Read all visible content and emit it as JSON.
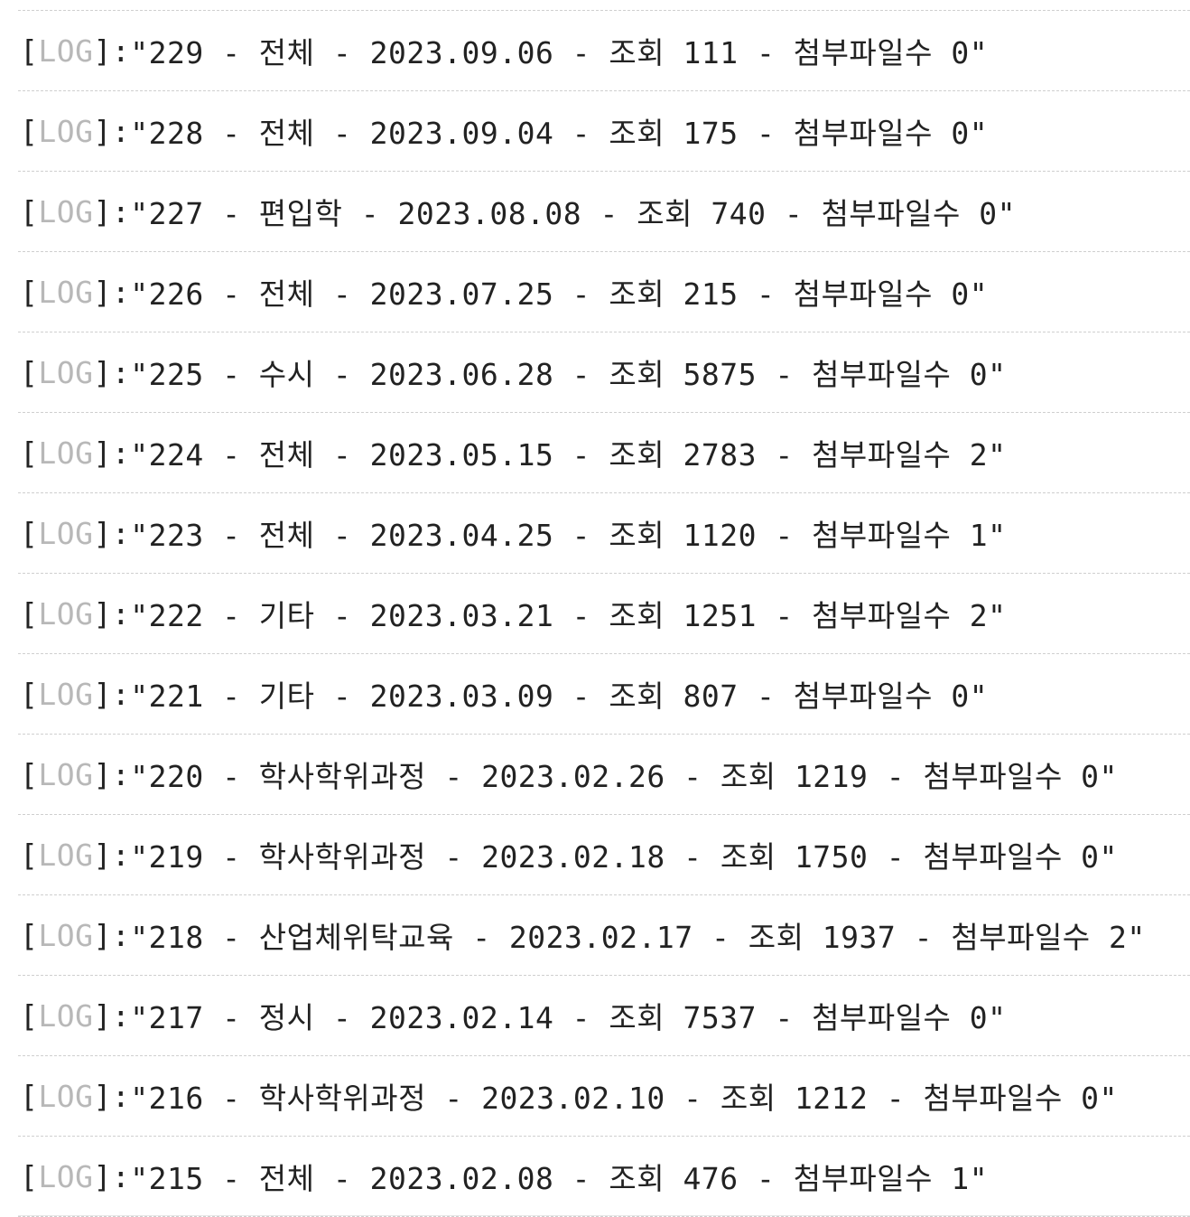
{
  "log": {
    "tag": "LOG",
    "open_bracket": "[",
    "close_bracket": "]:",
    "entries": [
      "\"229 - 전체 - 2023.09.06 - 조회 111 - 첨부파일수 0\"",
      "\"228 - 전체 - 2023.09.04 - 조회 175 - 첨부파일수 0\"",
      "\"227 - 편입학 - 2023.08.08 - 조회 740 - 첨부파일수 0\"",
      "\"226 - 전체 - 2023.07.25 - 조회 215 - 첨부파일수 0\"",
      "\"225 - 수시 - 2023.06.28 - 조회 5875 - 첨부파일수 0\"",
      "\"224 - 전체 - 2023.05.15 - 조회 2783 - 첨부파일수 2\"",
      "\"223 - 전체 - 2023.04.25 - 조회 1120 - 첨부파일수 1\"",
      "\"222 - 기타 - 2023.03.21 - 조회 1251 - 첨부파일수 2\"",
      "\"221 - 기타 - 2023.03.09 - 조회 807 - 첨부파일수 0\"",
      "\"220 - 학사학위과정 - 2023.02.26 - 조회 1219 - 첨부파일수 0\"",
      "\"219 - 학사학위과정 - 2023.02.18 - 조회 1750 - 첨부파일수 0\"",
      "\"218 - 산업체위탁교육 - 2023.02.17 - 조회 1937 - 첨부파일수 2\"",
      "\"217 - 정시 - 2023.02.14 - 조회 7537 - 첨부파일수 0\"",
      "\"216 - 학사학위과정 - 2023.02.10 - 조회 1212 - 첨부파일수 0\"",
      "\"215 - 전체 - 2023.02.08 - 조회 476 - 첨부파일수 1\""
    ]
  },
  "colors": {
    "text": "#222222",
    "tag": "#b8b8b8",
    "divider": "#cfcfcf"
  }
}
